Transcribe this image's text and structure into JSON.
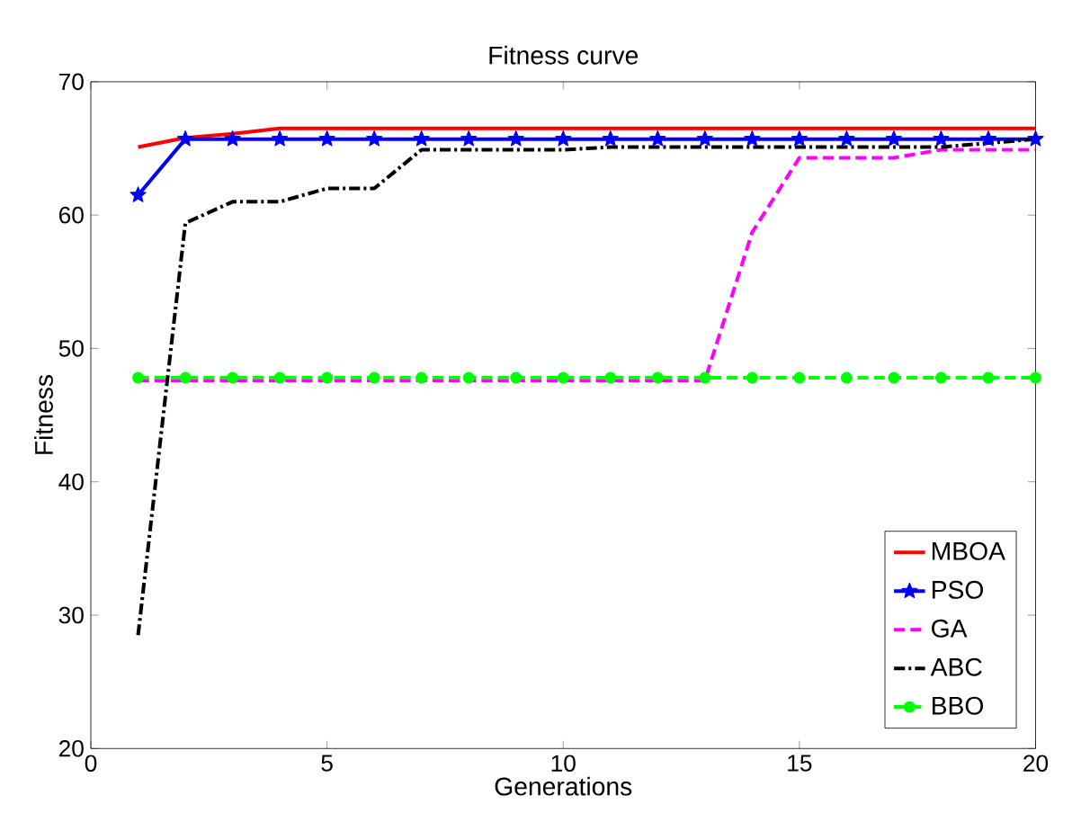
{
  "chart_data": {
    "type": "line",
    "title": "Fitness curve",
    "xlabel": "Generations",
    "ylabel": "Fitness",
    "x": [
      1,
      2,
      3,
      4,
      5,
      6,
      7,
      8,
      9,
      10,
      11,
      12,
      13,
      14,
      15,
      16,
      17,
      18,
      19,
      20
    ],
    "xlim": [
      0,
      20
    ],
    "xticks": [
      0,
      5,
      10,
      15,
      20
    ],
    "ylim": [
      20,
      70
    ],
    "yticks": [
      20,
      30,
      40,
      50,
      60,
      70
    ],
    "grid": false,
    "legend": "bottom right",
    "series": [
      {
        "name": "MBOA",
        "color": "#ff0000",
        "line_style": "solid",
        "marker": "none",
        "values": [
          65.1,
          65.8,
          66.1,
          66.5,
          66.5,
          66.5,
          66.5,
          66.5,
          66.5,
          66.5,
          66.5,
          66.5,
          66.5,
          66.5,
          66.5,
          66.5,
          66.5,
          66.5,
          66.5,
          66.5
        ]
      },
      {
        "name": "PSO",
        "color": "#0000ff",
        "line_style": "solid",
        "marker": "star",
        "values": [
          61.5,
          65.7,
          65.7,
          65.7,
          65.7,
          65.7,
          65.7,
          65.7,
          65.7,
          65.7,
          65.7,
          65.7,
          65.7,
          65.7,
          65.7,
          65.7,
          65.7,
          65.7,
          65.7,
          65.7
        ]
      },
      {
        "name": "GA",
        "color": "#ff00ff",
        "line_style": "dashed",
        "marker": "none",
        "values": [
          47.6,
          47.6,
          47.6,
          47.6,
          47.6,
          47.6,
          47.6,
          47.6,
          47.6,
          47.6,
          47.6,
          47.6,
          47.6,
          58.7,
          64.3,
          64.3,
          64.3,
          64.9,
          64.9,
          64.9
        ]
      },
      {
        "name": "ABC",
        "color": "#000000",
        "line_style": "dashdot",
        "marker": "none",
        "values": [
          28.5,
          59.4,
          61.0,
          61.0,
          62.0,
          62.0,
          64.9,
          64.9,
          64.9,
          64.9,
          65.1,
          65.1,
          65.1,
          65.1,
          65.1,
          65.1,
          65.1,
          65.1,
          65.4,
          65.7
        ]
      },
      {
        "name": "BBO",
        "color": "#00ff00",
        "line_style": "dashed",
        "marker": "circle",
        "values": [
          47.8,
          47.8,
          47.8,
          47.8,
          47.8,
          47.8,
          47.8,
          47.8,
          47.8,
          47.8,
          47.8,
          47.8,
          47.8,
          47.8,
          47.8,
          47.8,
          47.8,
          47.8,
          47.8,
          47.8
        ]
      }
    ]
  }
}
